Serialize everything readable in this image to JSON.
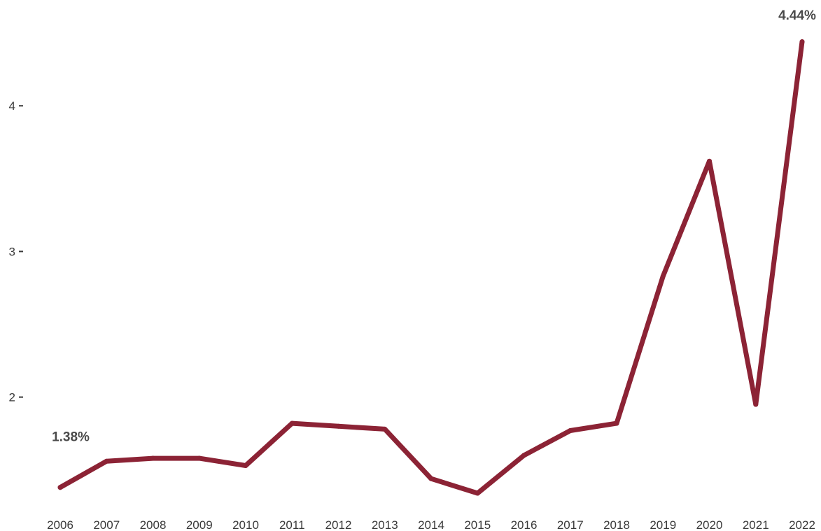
{
  "chart_data": {
    "type": "line",
    "title": "",
    "xlabel": "",
    "ylabel": "",
    "x": [
      "2006",
      "2007",
      "2008",
      "2009",
      "2010",
      "2011",
      "2012",
      "2013",
      "2014",
      "2015",
      "2016",
      "2017",
      "2018",
      "2019",
      "2020",
      "2021",
      "2022"
    ],
    "series": [
      {
        "values": [
          1.38,
          1.56,
          1.58,
          1.58,
          1.53,
          1.82,
          1.8,
          1.78,
          1.44,
          1.34,
          1.6,
          1.77,
          1.82,
          2.83,
          3.62,
          1.95,
          4.44
        ],
        "color": "#8c2335"
      }
    ],
    "y_ticks": [
      "2",
      "3",
      "4"
    ],
    "ylim": [
      1.22,
      4.64
    ],
    "grid": false,
    "legend": "none",
    "annotations": [
      {
        "x": "2006",
        "text": "1.38%"
      },
      {
        "x": "2022",
        "text": "4.44%"
      }
    ]
  }
}
